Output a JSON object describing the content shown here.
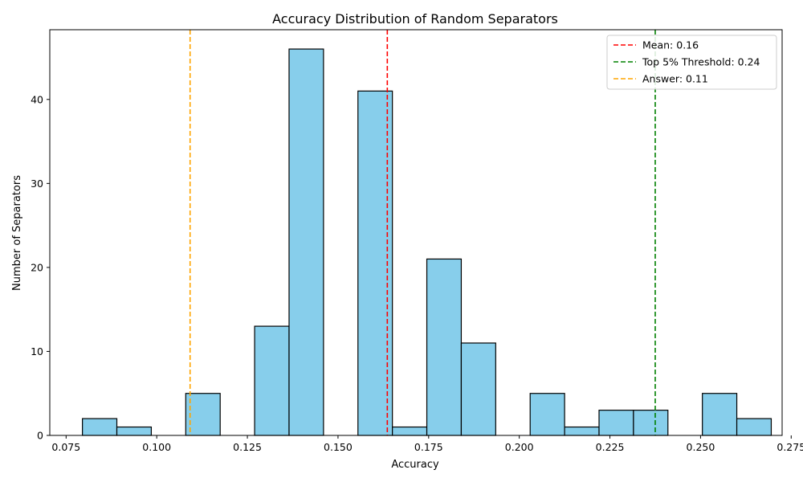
{
  "chart_data": {
    "type": "bar",
    "subtype": "histogram",
    "title": "Accuracy Distribution of Random Separators",
    "xlabel": "Accuracy",
    "ylabel": "Number of Separators",
    "xlim": [
      0.0705,
      0.2725
    ],
    "ylim": [
      0,
      48.3
    ],
    "xticks": [
      "0.075",
      "0.100",
      "0.125",
      "0.150",
      "0.175",
      "0.200",
      "0.225",
      "0.250",
      "0.275"
    ],
    "xtick_values": [
      0.075,
      0.1,
      0.125,
      0.15,
      0.175,
      0.2,
      0.225,
      0.25,
      0.275
    ],
    "yticks": [
      "0",
      "10",
      "20",
      "30",
      "40"
    ],
    "ytick_values": [
      0,
      10,
      20,
      30,
      40
    ],
    "bar_color": "#87ceeb",
    "bar_edge_color": "#000000",
    "bins": [
      {
        "start": 0.0795,
        "end": 0.089,
        "count": 2
      },
      {
        "start": 0.089,
        "end": 0.0985,
        "count": 1
      },
      {
        "start": 0.0985,
        "end": 0.108,
        "count": 0
      },
      {
        "start": 0.108,
        "end": 0.1175,
        "count": 5
      },
      {
        "start": 0.1175,
        "end": 0.127,
        "count": 0
      },
      {
        "start": 0.127,
        "end": 0.1365,
        "count": 13
      },
      {
        "start": 0.1365,
        "end": 0.146,
        "count": 46
      },
      {
        "start": 0.146,
        "end": 0.1555,
        "count": 0
      },
      {
        "start": 0.1555,
        "end": 0.165,
        "count": 41
      },
      {
        "start": 0.165,
        "end": 0.1745,
        "count": 1
      },
      {
        "start": 0.1745,
        "end": 0.184,
        "count": 21
      },
      {
        "start": 0.184,
        "end": 0.1935,
        "count": 11
      },
      {
        "start": 0.1935,
        "end": 0.203,
        "count": 0
      },
      {
        "start": 0.203,
        "end": 0.2125,
        "count": 5
      },
      {
        "start": 0.2125,
        "end": 0.222,
        "count": 1
      },
      {
        "start": 0.222,
        "end": 0.2315,
        "count": 3
      },
      {
        "start": 0.2315,
        "end": 0.241,
        "count": 3
      },
      {
        "start": 0.241,
        "end": 0.2505,
        "count": 0
      },
      {
        "start": 0.2505,
        "end": 0.26,
        "count": 5
      },
      {
        "start": 0.26,
        "end": 0.2695,
        "count": 2
      }
    ],
    "reference_lines": [
      {
        "label": "Mean: 0.16",
        "x": 0.1636,
        "color": "#ff0000",
        "style": "dashed"
      },
      {
        "label": "Top 5% Threshold: 0.24",
        "x": 0.2375,
        "color": "#008000",
        "style": "dashed"
      },
      {
        "label": "Answer: 0.11",
        "x": 0.1092,
        "color": "#ffa500",
        "style": "dashed"
      }
    ],
    "legend_position": "top-right",
    "grid": false
  }
}
